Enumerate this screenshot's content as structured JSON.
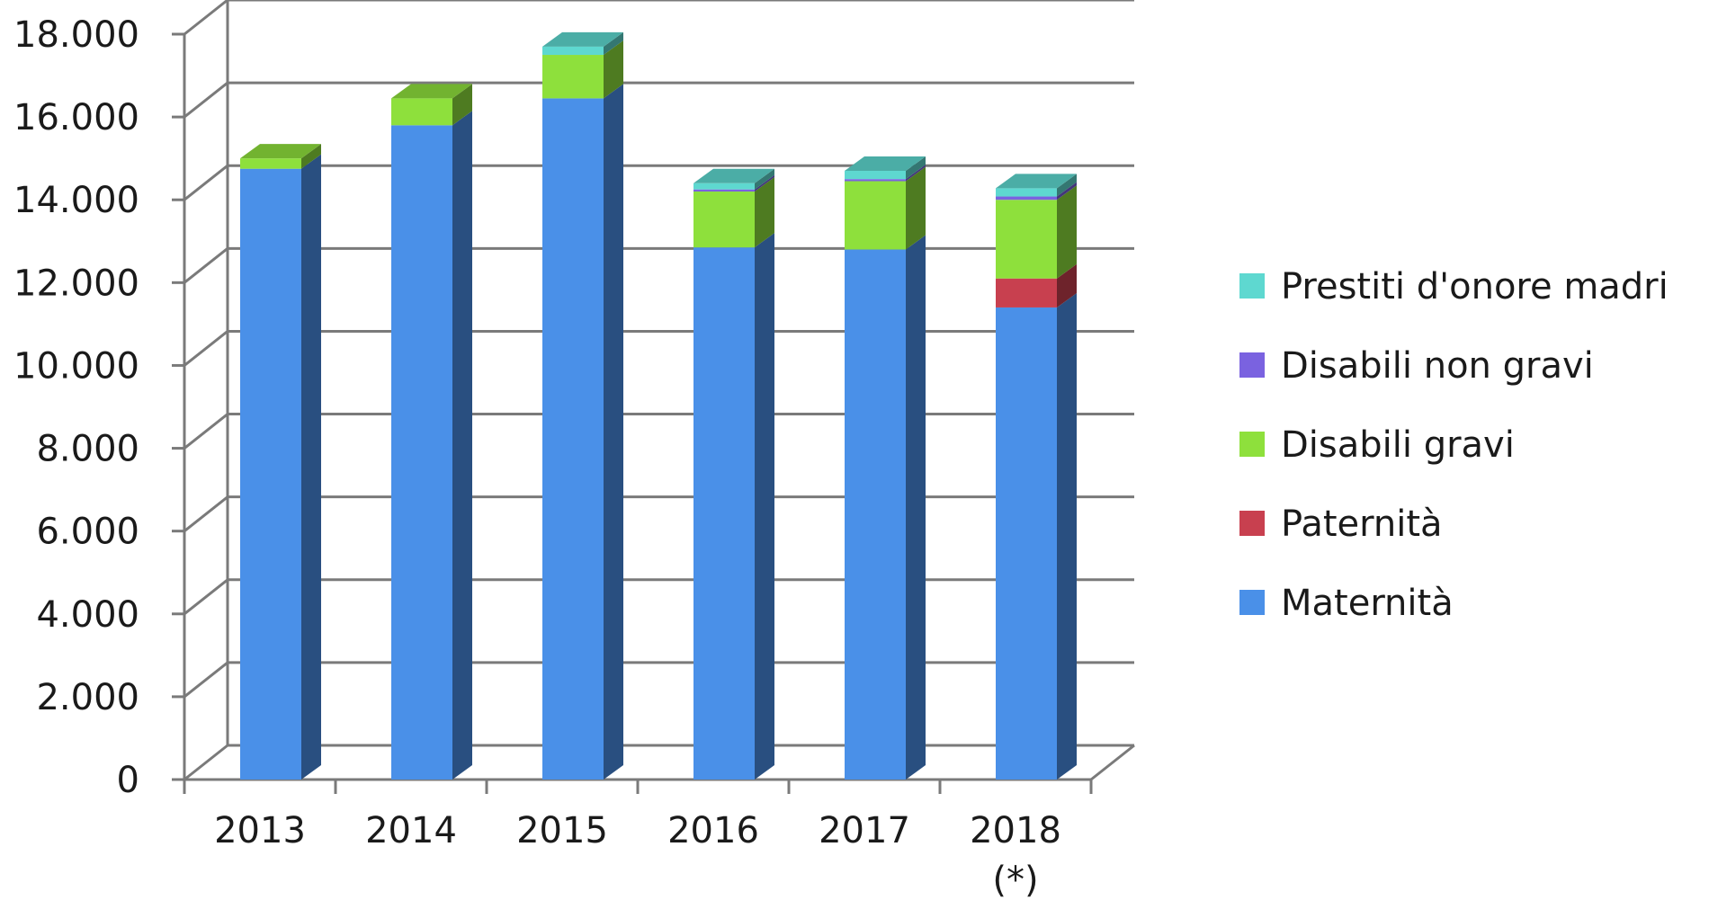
{
  "chart_data": {
    "type": "bar",
    "stacked": true,
    "three_d": true,
    "categories": [
      "2013",
      "2014",
      "2015",
      "2016",
      "2017",
      "2018"
    ],
    "category_notes": [
      "",
      "",
      "",
      "",
      "",
      "(*)"
    ],
    "series": [
      {
        "name": "Maternità",
        "color": "#4a90e8",
        "values": [
          14750,
          15800,
          16450,
          12850,
          12800,
          11400
        ]
      },
      {
        "name": "Paternità",
        "color": "#c8404f",
        "values": [
          0,
          0,
          0,
          0,
          0,
          700
        ]
      },
      {
        "name": "Disabili gravi",
        "color": "#8ee03c",
        "values": [
          250,
          650,
          1050,
          1350,
          1650,
          1900
        ]
      },
      {
        "name": "Disabili non gravi",
        "color": "#7a62e0",
        "values": [
          0,
          0,
          0,
          50,
          50,
          80
        ]
      },
      {
        "name": "Prestiti d'onore madri",
        "color": "#5ed8d0",
        "values": [
          0,
          0,
          200,
          150,
          200,
          200
        ]
      }
    ],
    "y_ticks": [
      "0",
      "2.000",
      "4.000",
      "6.000",
      "8.000",
      "10.000",
      "12.000",
      "14.000",
      "16.000",
      "18.000"
    ],
    "ylim": [
      0,
      18000
    ],
    "grid": true,
    "legend_position": "right",
    "legend_order": [
      "Prestiti d'onore madri",
      "Disabili non gravi",
      "Disabili gravi",
      "Paternità",
      "Maternità"
    ]
  }
}
